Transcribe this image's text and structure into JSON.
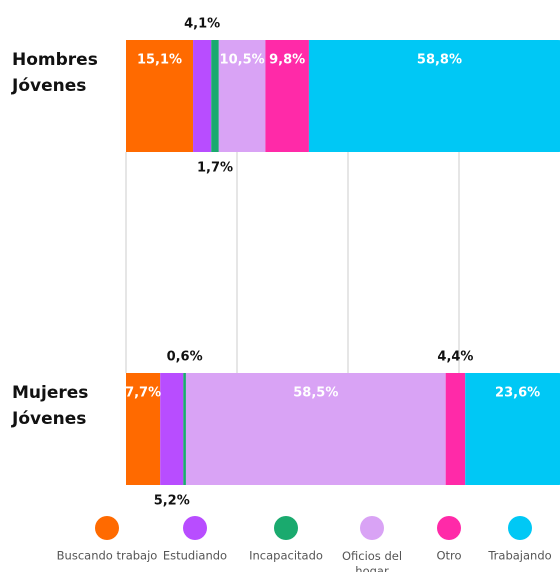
{
  "chart_data": {
    "type": "stacked-bar-horizontal",
    "categories": [
      "Hombres Jóvenes",
      "Mujeres Jóvenes"
    ],
    "xlim": [
      0,
      100
    ],
    "xticks": [
      0,
      25,
      50,
      75,
      100
    ],
    "grid": true,
    "series": [
      {
        "name": "Buscando trabajo",
        "color": "#ff6a00",
        "values": [
          15.1,
          7.7
        ],
        "value_labels": [
          "15,1%",
          "7,7%"
        ]
      },
      {
        "name": "Estudiando",
        "color": "#b84dff",
        "values": [
          4.1,
          5.2
        ],
        "value_labels": [
          "4,1%",
          "5,2%"
        ]
      },
      {
        "name": "Incapacitado",
        "color": "#1aaa6e",
        "values": [
          1.7,
          0.6
        ],
        "value_labels": [
          "1,7%",
          "0,6%"
        ]
      },
      {
        "name": "Oficios del hogar",
        "color": "#d9a3f5",
        "values": [
          10.5,
          58.5
        ],
        "value_labels": [
          "10,5%",
          "58,5%"
        ]
      },
      {
        "name": "Otro",
        "color": "#ff2aa8",
        "values": [
          9.8,
          4.4
        ],
        "value_labels": [
          "9,8%",
          "4,4%"
        ]
      },
      {
        "name": "Trabajando",
        "color": "#00c8f5",
        "values": [
          58.8,
          23.6
        ],
        "value_labels": [
          "58,8%",
          "23,6%"
        ]
      }
    ]
  }
}
